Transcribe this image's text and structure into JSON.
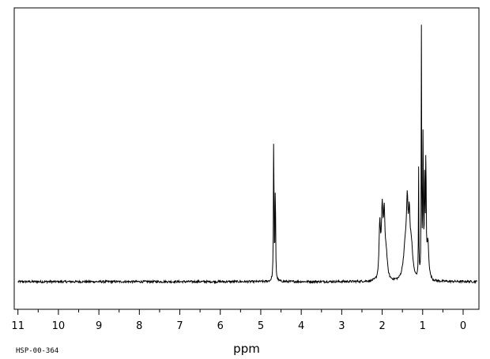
{
  "chart_data": {
    "type": "line",
    "title": "",
    "xlabel": "ppm",
    "ylabel": "",
    "xlim": [
      11.0,
      -0.35
    ],
    "x_reversed": true,
    "ylim": [
      0,
      100
    ],
    "grid": false,
    "legend": "none",
    "x_ticks": [
      11,
      10,
      9,
      8,
      7,
      6,
      5,
      4,
      3,
      2,
      1,
      0
    ],
    "x_tick_labels": [
      "11",
      "10",
      "9",
      "8",
      "7",
      "6",
      "5",
      "4",
      "3",
      "2",
      "1",
      "0"
    ],
    "corner_label": "HSP-00-364",
    "line_color": "#000000",
    "baseline": 0,
    "peaks": [
      {
        "ppm": 4.68,
        "height": 60.0,
        "width": 0.008
      },
      {
        "ppm": 4.64,
        "height": 40.0,
        "width": 0.008
      },
      {
        "ppm": 2.06,
        "height": 20.0,
        "width": 0.02
      },
      {
        "ppm": 2.0,
        "height": 21.0,
        "width": 0.02
      },
      {
        "ppm": 1.95,
        "height": 19.0,
        "width": 0.02
      },
      {
        "ppm": 1.9,
        "height": 8.0,
        "width": 0.035
      },
      {
        "ppm": 1.42,
        "height": 10.0,
        "width": 0.06
      },
      {
        "ppm": 1.38,
        "height": 18.0,
        "width": 0.018
      },
      {
        "ppm": 1.33,
        "height": 15.0,
        "width": 0.018
      },
      {
        "ppm": 1.28,
        "height": 9.0,
        "width": 0.04
      },
      {
        "ppm": 1.1,
        "height": 44.0,
        "width": 0.006
      },
      {
        "ppm": 1.03,
        "height": 100.0,
        "width": 0.006
      },
      {
        "ppm": 0.99,
        "height": 55.0,
        "width": 0.008
      },
      {
        "ppm": 0.95,
        "height": 38.0,
        "width": 0.008
      },
      {
        "ppm": 0.92,
        "height": 48.0,
        "width": 0.008
      },
      {
        "ppm": 0.87,
        "height": 13.0,
        "width": 0.025
      }
    ]
  }
}
